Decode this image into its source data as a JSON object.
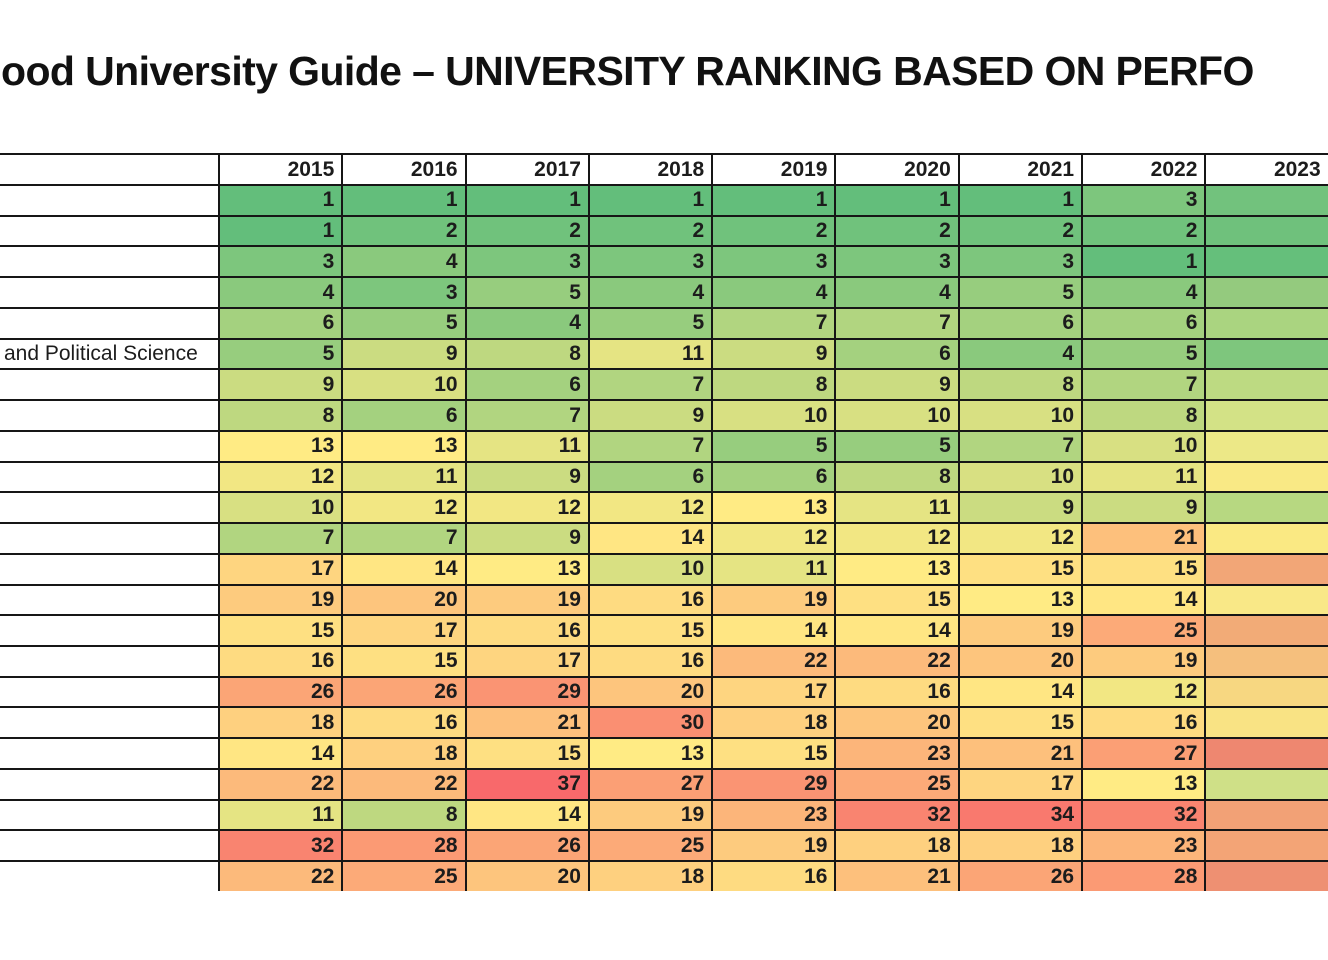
{
  "title": "ood University Guide – UNIVERSITY RANKING BASED ON PERFO",
  "color_scale": {
    "min_value": 1,
    "min_color": "#63be7b",
    "mid_value": 13,
    "mid_color": "#ffeb84",
    "max_value": 37,
    "max_color": "#f8696b"
  },
  "styles": {
    "border_color": "#161616",
    "text_color": "#1c1c1c",
    "cell_background": "#ffffff"
  },
  "table": {
    "corner_label": "",
    "columns": [
      "2015",
      "2016",
      "2017",
      "2018",
      "2019",
      "2020",
      "2021",
      "2022",
      "2023"
    ],
    "rows": [
      {
        "label": "",
        "values": [
          1,
          1,
          1,
          1,
          1,
          1,
          1,
          3
        ],
        "next_year_color": "#72c27d"
      },
      {
        "label": "",
        "values": [
          1,
          2,
          2,
          2,
          2,
          2,
          2,
          2
        ],
        "next_year_color": "#6fc17c"
      },
      {
        "label": "",
        "values": [
          3,
          4,
          3,
          3,
          3,
          3,
          3,
          1
        ],
        "next_year_color": "#65bf7b"
      },
      {
        "label": "",
        "values": [
          4,
          3,
          5,
          4,
          4,
          4,
          5,
          4
        ],
        "next_year_color": "#94ca7e"
      },
      {
        "label": "",
        "values": [
          6,
          5,
          4,
          5,
          7,
          7,
          6,
          6
        ],
        "next_year_color": "#aad480"
      },
      {
        "label": "and Political Science",
        "values": [
          5,
          9,
          8,
          11,
          9,
          6,
          4,
          5
        ],
        "next_year_color": "#7ec67d"
      },
      {
        "label": "",
        "values": [
          9,
          10,
          6,
          7,
          8,
          9,
          8,
          7
        ],
        "next_year_color": "#bdda82"
      },
      {
        "label": "",
        "values": [
          8,
          6,
          7,
          9,
          10,
          10,
          10,
          8
        ],
        "next_year_color": "#d3e286"
      },
      {
        "label": "",
        "values": [
          13,
          13,
          11,
          7,
          5,
          5,
          7,
          10
        ],
        "next_year_color": "#ece887"
      },
      {
        "label": "",
        "values": [
          12,
          11,
          9,
          6,
          6,
          8,
          10,
          11
        ],
        "next_year_color": "#f9e985"
      },
      {
        "label": "",
        "values": [
          10,
          12,
          12,
          12,
          13,
          11,
          9,
          9
        ],
        "next_year_color": "#b7d881"
      },
      {
        "label": "",
        "values": [
          7,
          7,
          9,
          14,
          12,
          12,
          12,
          21
        ],
        "next_year_color": "#fae983"
      },
      {
        "label": "",
        "values": [
          17,
          14,
          13,
          10,
          11,
          13,
          15,
          15
        ],
        "next_year_color": "#f2a677"
      },
      {
        "label": "",
        "values": [
          19,
          20,
          19,
          16,
          19,
          15,
          13,
          14
        ],
        "next_year_color": "#f9e887"
      },
      {
        "label": "",
        "values": [
          15,
          17,
          16,
          15,
          14,
          14,
          19,
          25
        ],
        "next_year_color": "#f2ab77"
      },
      {
        "label": "",
        "values": [
          16,
          15,
          17,
          16,
          22,
          22,
          20,
          19
        ],
        "next_year_color": "#f5bf7d"
      },
      {
        "label": "",
        "values": [
          26,
          26,
          29,
          20,
          17,
          16,
          14,
          12
        ],
        "next_year_color": "#f7d781"
      },
      {
        "label": "",
        "values": [
          18,
          16,
          21,
          30,
          18,
          20,
          15,
          16
        ],
        "next_year_color": "#f9e384"
      },
      {
        "label": "",
        "values": [
          14,
          18,
          15,
          13,
          15,
          23,
          21,
          27
        ],
        "next_year_color": "#ee8770"
      },
      {
        "label": "",
        "values": [
          22,
          22,
          37,
          27,
          29,
          25,
          17,
          13
        ],
        "next_year_color": "#cfe087"
      },
      {
        "label": "",
        "values": [
          11,
          8,
          14,
          19,
          23,
          32,
          34,
          32
        ],
        "next_year_color": "#f2a176"
      },
      {
        "label": "",
        "values": [
          32,
          28,
          26,
          25,
          19,
          18,
          18,
          23
        ],
        "next_year_color": "#f3a476"
      },
      {
        "label": "",
        "values": [
          22,
          25,
          20,
          18,
          16,
          21,
          26,
          28
        ],
        "next_year_color": "#ee9072"
      }
    ]
  }
}
